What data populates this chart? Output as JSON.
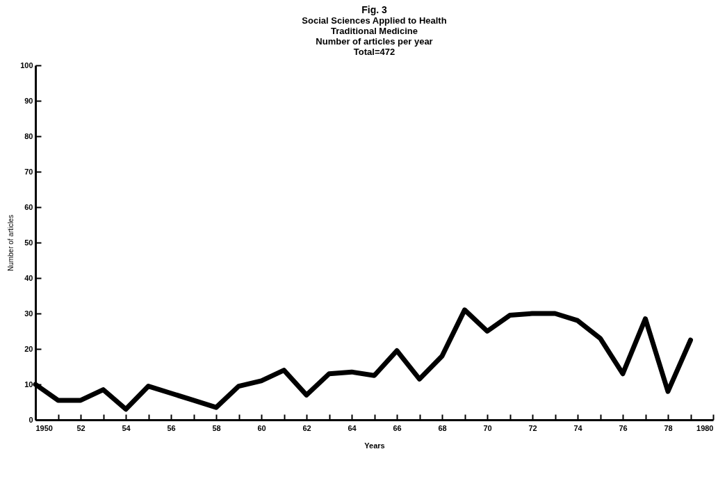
{
  "chart_data": {
    "type": "line",
    "title": "Fig. 3",
    "subtitle": "Social Sciences Applied to Health\nTraditional Medicine\nNumber of articles per year\nTotal=472",
    "xlabel": "Years",
    "ylabel": "Number of articles",
    "x": [
      1950,
      1951,
      1952,
      1953,
      1954,
      1955,
      1956,
      1957,
      1958,
      1959,
      1960,
      1961,
      1962,
      1963,
      1964,
      1965,
      1966,
      1967,
      1968,
      1969,
      1970,
      1971,
      1972,
      1973,
      1974,
      1975,
      1976,
      1977,
      1978,
      1979
    ],
    "series": [
      {
        "color": "#000000",
        "values": [
          10,
          5.5,
          5.5,
          8.5,
          3,
          9.5,
          7.5,
          5.5,
          3.5,
          9.5,
          11,
          14,
          7,
          13,
          13.5,
          12.5,
          19.5,
          11.5,
          18,
          31,
          25,
          29.5,
          30,
          30,
          28,
          23,
          13,
          28.5,
          8,
          22.5
        ]
      }
    ],
    "xlim": [
      1950,
      1980
    ],
    "ylim": [
      0,
      100
    ],
    "xticks": [
      {
        "value": 1950,
        "label": "1950"
      },
      {
        "value": 1951,
        "label": null
      },
      {
        "value": 1952,
        "label": "52"
      },
      {
        "value": 1953,
        "label": null
      },
      {
        "value": 1954,
        "label": "54"
      },
      {
        "value": 1955,
        "label": null
      },
      {
        "value": 1956,
        "label": "56"
      },
      {
        "value": 1957,
        "label": null
      },
      {
        "value": 1958,
        "label": "58"
      },
      {
        "value": 1959,
        "label": null
      },
      {
        "value": 1960,
        "label": "60"
      },
      {
        "value": 1961,
        "label": null
      },
      {
        "value": 1962,
        "label": "62"
      },
      {
        "value": 1963,
        "label": null
      },
      {
        "value": 1964,
        "label": "64"
      },
      {
        "value": 1965,
        "label": null
      },
      {
        "value": 1966,
        "label": "66"
      },
      {
        "value": 1967,
        "label": null
      },
      {
        "value": 1968,
        "label": "68"
      },
      {
        "value": 1969,
        "label": null
      },
      {
        "value": 1970,
        "label": "70"
      },
      {
        "value": 1971,
        "label": null
      },
      {
        "value": 1972,
        "label": "72"
      },
      {
        "value": 1973,
        "label": null
      },
      {
        "value": 1974,
        "label": "74"
      },
      {
        "value": 1975,
        "label": null
      },
      {
        "value": 1976,
        "label": "76"
      },
      {
        "value": 1977,
        "label": null
      },
      {
        "value": 1978,
        "label": "78"
      },
      {
        "value": 1979,
        "label": null
      },
      {
        "value": 1980,
        "label": "1980"
      }
    ],
    "yticks": [
      0,
      10,
      20,
      30,
      40,
      50,
      60,
      70,
      80,
      90,
      100
    ],
    "grid": false,
    "marker": "none",
    "line_style": "solid"
  }
}
